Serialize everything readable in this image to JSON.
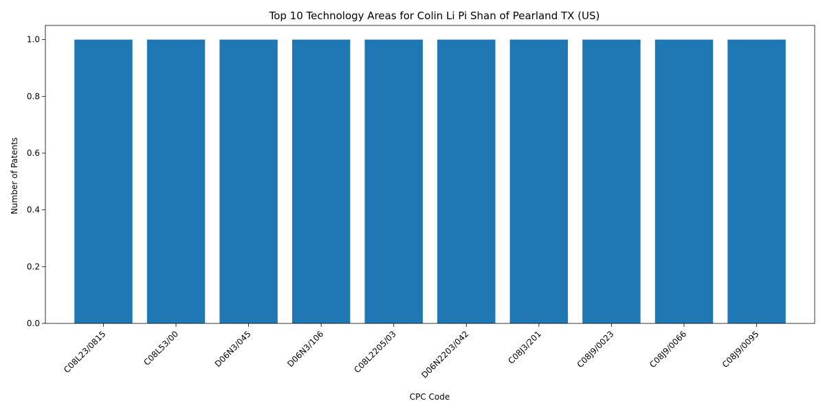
{
  "chart_data": {
    "type": "bar",
    "title": "Top 10 Technology Areas for Colin Li Pi Shan of Pearland TX (US)",
    "xlabel": "CPC Code",
    "ylabel": "Number of Patents",
    "categories": [
      "C08L23/0815",
      "C08L53/00",
      "D06N3/045",
      "D06N3/106",
      "C08L2205/03",
      "D06N2203/042",
      "C08J3/201",
      "C08J9/0023",
      "C08J9/0066",
      "C08J9/0095"
    ],
    "values": [
      1,
      1,
      1,
      1,
      1,
      1,
      1,
      1,
      1,
      1
    ],
    "ylim": [
      0,
      1.05
    ],
    "yticks": [
      "0.0",
      "0.2",
      "0.4",
      "0.6",
      "0.8",
      "1.0"
    ],
    "bar_color": "#1f77b4",
    "grid": false,
    "legend": "none"
  }
}
